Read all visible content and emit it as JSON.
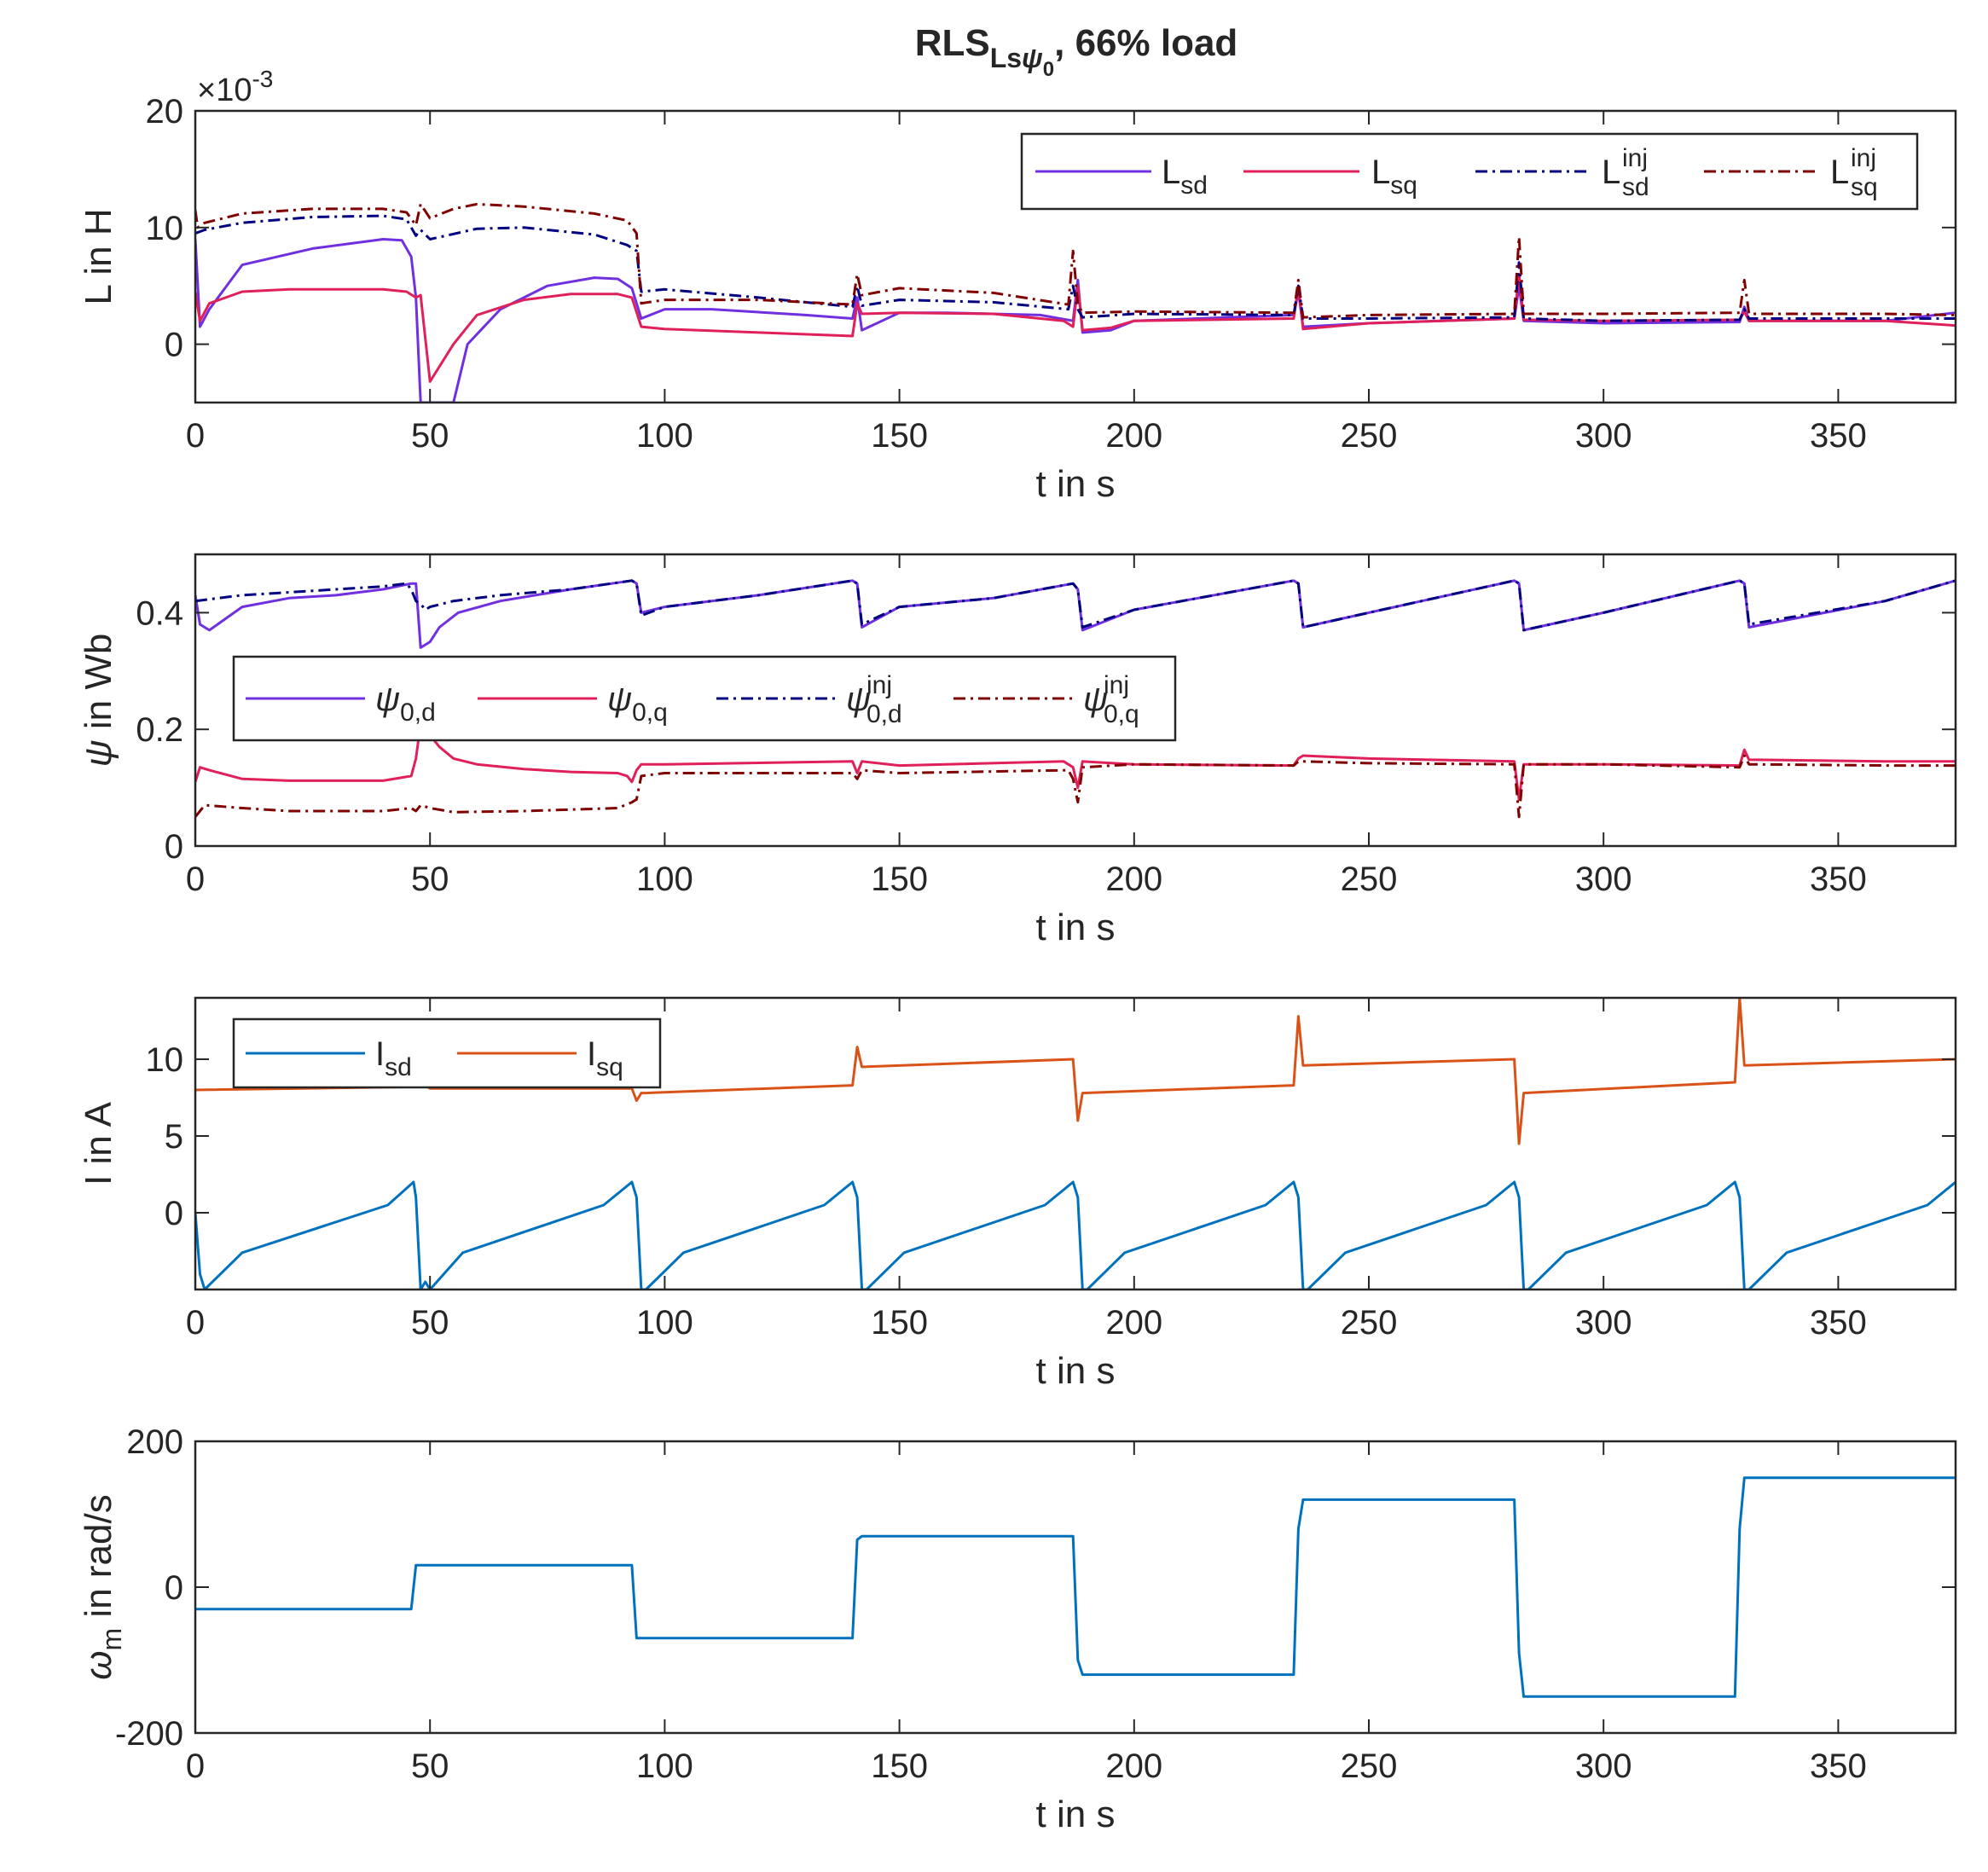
{
  "figure": {
    "title_main": "RLS",
    "title_sub": "Ls",
    "title_sub_greek": "ψ",
    "title_sub_sub": "0",
    "title_rest": ", 66% load"
  },
  "colors": {
    "axis": "#262626",
    "Lsd": "#7030E0",
    "Lsq": "#E0205A",
    "Lsd_inj": "#000080",
    "Lsq_inj": "#800000",
    "Isd": "#0072BD",
    "Isq": "#D95319",
    "wm": "#0072BD"
  },
  "chart_data": [
    {
      "type": "line",
      "xlabel": "t in s",
      "ylabel": "L in H",
      "exponent_label": {
        "base": "×10",
        "exp": "-3"
      },
      "xlim": [
        0,
        375
      ],
      "ylim": [
        -5,
        20
      ],
      "xticks": [
        0,
        50,
        100,
        150,
        200,
        250,
        300,
        350
      ],
      "yticks": [
        0,
        10,
        20
      ],
      "legend_position": "top-right",
      "series": [
        {
          "name": "L",
          "sub": "sd",
          "sup": "",
          "color": "#7030E0",
          "dash": "solid",
          "x": [
            0,
            1,
            3,
            10,
            25,
            40,
            44,
            46,
            47,
            48,
            49,
            50,
            52,
            55,
            58,
            65,
            75,
            85,
            90,
            93,
            95,
            100,
            110,
            130,
            140,
            141,
            142,
            150,
            160,
            180,
            187,
            188,
            189,
            195,
            200,
            234,
            235,
            236,
            250,
            281,
            282,
            283,
            300,
            329,
            330,
            331,
            360,
            375
          ],
          "y": [
            9,
            1.5,
            3,
            6.8,
            8.2,
            9,
            8.9,
            7.5,
            4,
            -5,
            -5,
            -5,
            -5,
            -5,
            0,
            3,
            5,
            5.7,
            5.6,
            4.8,
            2.2,
            3,
            3,
            2.5,
            2.2,
            4,
            1.2,
            2.7,
            2.7,
            2.5,
            2,
            5.5,
            1,
            1.2,
            2,
            2.5,
            4.5,
            1.5,
            1.8,
            2.2,
            5,
            2,
            1.8,
            1.9,
            3.2,
            2,
            2,
            2.7
          ]
        },
        {
          "name": "L",
          "sub": "sq",
          "sup": "",
          "color": "#E0205A",
          "dash": "solid",
          "x": [
            0,
            1,
            3,
            10,
            20,
            40,
            45,
            47,
            48,
            50,
            55,
            60,
            70,
            80,
            90,
            93,
            95,
            100,
            120,
            140,
            141,
            142,
            150,
            170,
            185,
            187,
            188,
            189,
            195,
            200,
            234,
            235,
            236,
            250,
            281,
            282,
            283,
            300,
            329,
            330,
            331,
            360,
            375
          ],
          "y": [
            4.5,
            2,
            3.5,
            4.5,
            4.7,
            4.7,
            4.5,
            4,
            4.2,
            -3.2,
            0,
            2.5,
            3.8,
            4.3,
            4.3,
            4,
            1.5,
            1.3,
            1,
            0.7,
            3.5,
            2.6,
            2.7,
            2.6,
            2,
            1.5,
            5,
            1.2,
            1.4,
            2,
            2.2,
            5,
            1.3,
            1.8,
            2.2,
            6,
            2.1,
            2,
            2.1,
            2.8,
            2,
            2,
            1.6
          ]
        },
        {
          "name": "L",
          "sub": "sd",
          "sup": "inj",
          "color": "#000080",
          "dash": "dashdot",
          "x": [
            0,
            2,
            10,
            25,
            40,
            45,
            47,
            48,
            50,
            60,
            70,
            85,
            92,
            94,
            95,
            100,
            120,
            140,
            141,
            142,
            150,
            170,
            186,
            187,
            188,
            189,
            200,
            234,
            235,
            236,
            250,
            281,
            282,
            283,
            300,
            329,
            330,
            331,
            360,
            375
          ],
          "y": [
            9.5,
            9.8,
            10.4,
            10.9,
            11,
            10.7,
            9.3,
            9.8,
            9,
            9.9,
            10,
            9.4,
            8.5,
            8,
            4.5,
            4.7,
            4,
            3.2,
            5,
            3.3,
            3.8,
            3.6,
            3,
            5,
            3,
            2.3,
            2.6,
            2.5,
            5,
            2.2,
            2.2,
            2.3,
            7,
            2.2,
            2,
            2.1,
            3,
            2.2,
            2.2,
            2.2
          ]
        },
        {
          "name": "L",
          "sub": "sq",
          "sup": "inj",
          "color": "#800000",
          "dash": "dashdot",
          "x": [
            0,
            0.5,
            2,
            10,
            25,
            40,
            45,
            47,
            48,
            50,
            55,
            60,
            70,
            85,
            92,
            94,
            95,
            100,
            120,
            140,
            141,
            142,
            150,
            170,
            186,
            187,
            188,
            189,
            200,
            234,
            235,
            236,
            250,
            281,
            282,
            283,
            300,
            329,
            330,
            331,
            360,
            375
          ],
          "y": [
            11.5,
            10,
            10.4,
            11.2,
            11.6,
            11.6,
            11.3,
            10.2,
            12,
            10.8,
            11.6,
            12,
            11.8,
            11.2,
            10.6,
            9.5,
            3.5,
            3.8,
            3.8,
            3.4,
            6,
            4.2,
            4.8,
            4.4,
            3.4,
            8,
            3.4,
            2.7,
            2.8,
            2.7,
            5.5,
            2.3,
            2.5,
            2.6,
            9.2,
            2.6,
            2.6,
            2.7,
            5.5,
            2.6,
            2.6,
            2.5
          ]
        }
      ]
    },
    {
      "type": "line",
      "xlabel": "t in s",
      "ylabel": "ψ in Wb",
      "xlim": [
        0,
        375
      ],
      "ylim": [
        0,
        0.5
      ],
      "xticks": [
        0,
        50,
        100,
        150,
        200,
        250,
        300,
        350
      ],
      "yticks": [
        0,
        0.2,
        0.4
      ],
      "legend_position": "middle-left",
      "series": [
        {
          "name": "ψ",
          "sub": "0,d",
          "sup": "",
          "color": "#7030E0",
          "dash": "solid",
          "x": [
            0,
            1,
            3,
            10,
            20,
            30,
            40,
            46,
            47,
            48,
            50,
            52,
            56,
            65,
            80,
            93,
            94,
            95,
            100,
            120,
            140,
            141,
            142,
            150,
            170,
            187,
            188,
            189,
            200,
            234,
            235,
            236,
            250,
            281,
            282,
            283,
            300,
            329,
            330,
            331,
            360,
            375
          ],
          "y": [
            0.43,
            0.38,
            0.37,
            0.41,
            0.425,
            0.43,
            0.44,
            0.45,
            0.45,
            0.34,
            0.35,
            0.375,
            0.4,
            0.42,
            0.44,
            0.455,
            0.45,
            0.4,
            0.41,
            0.43,
            0.455,
            0.45,
            0.375,
            0.41,
            0.425,
            0.45,
            0.44,
            0.37,
            0.405,
            0.455,
            0.45,
            0.375,
            0.4,
            0.455,
            0.45,
            0.37,
            0.4,
            0.455,
            0.45,
            0.375,
            0.42,
            0.455
          ]
        },
        {
          "name": "ψ",
          "sub": "0,q",
          "sup": "",
          "color": "#E0205A",
          "dash": "solid",
          "x": [
            0,
            1,
            3,
            10,
            20,
            40,
            46,
            47,
            48,
            50,
            52,
            55,
            60,
            70,
            80,
            90,
            92,
            93,
            94,
            95,
            100,
            140,
            141,
            142,
            150,
            185,
            187,
            188,
            189,
            200,
            234,
            235,
            236,
            250,
            281,
            282,
            283,
            300,
            329,
            330,
            331,
            360,
            375
          ],
          "y": [
            0.11,
            0.135,
            0.13,
            0.115,
            0.112,
            0.112,
            0.12,
            0.15,
            0.21,
            0.19,
            0.17,
            0.15,
            0.14,
            0.132,
            0.127,
            0.125,
            0.12,
            0.11,
            0.13,
            0.14,
            0.14,
            0.145,
            0.125,
            0.145,
            0.138,
            0.145,
            0.135,
            0.1,
            0.145,
            0.14,
            0.138,
            0.15,
            0.155,
            0.15,
            0.145,
            0.08,
            0.14,
            0.14,
            0.138,
            0.165,
            0.148,
            0.145,
            0.145
          ]
        },
        {
          "name": "ψ",
          "sub": "0,d",
          "sup": "inj",
          "color": "#000080",
          "dash": "dashdot",
          "x": [
            0,
            10,
            20,
            30,
            40,
            45,
            46,
            47,
            48,
            49,
            50,
            55,
            65,
            80,
            93,
            94,
            95,
            100,
            120,
            140,
            141,
            142,
            150,
            170,
            187,
            188,
            189,
            200,
            234,
            235,
            236,
            250,
            281,
            282,
            283,
            300,
            329,
            330,
            331,
            360,
            375
          ],
          "y": [
            0.42,
            0.43,
            0.435,
            0.44,
            0.445,
            0.45,
            0.44,
            0.42,
            0.415,
            0.405,
            0.41,
            0.42,
            0.43,
            0.44,
            0.455,
            0.45,
            0.395,
            0.41,
            0.43,
            0.455,
            0.45,
            0.38,
            0.41,
            0.425,
            0.45,
            0.44,
            0.375,
            0.405,
            0.455,
            0.45,
            0.375,
            0.4,
            0.455,
            0.45,
            0.37,
            0.4,
            0.455,
            0.45,
            0.38,
            0.42,
            0.455
          ]
        },
        {
          "name": "ψ",
          "sub": "0,q",
          "sup": "inj",
          "color": "#800000",
          "dash": "dashdot",
          "x": [
            0,
            2,
            10,
            20,
            40,
            46,
            47,
            48,
            50,
            55,
            70,
            90,
            93,
            94,
            95,
            100,
            140,
            141,
            142,
            150,
            186,
            187,
            188,
            189,
            200,
            234,
            235,
            236,
            250,
            281,
            282,
            283,
            300,
            329,
            330,
            331,
            360,
            375
          ],
          "y": [
            0.05,
            0.07,
            0.065,
            0.06,
            0.06,
            0.065,
            0.06,
            0.07,
            0.065,
            0.058,
            0.06,
            0.065,
            0.075,
            0.08,
            0.12,
            0.125,
            0.125,
            0.115,
            0.13,
            0.125,
            0.13,
            0.115,
            0.075,
            0.135,
            0.14,
            0.138,
            0.145,
            0.145,
            0.142,
            0.14,
            0.05,
            0.14,
            0.14,
            0.135,
            0.155,
            0.14,
            0.138,
            0.138
          ]
        }
      ]
    },
    {
      "type": "line",
      "xlabel": "t in s",
      "ylabel": "I in A",
      "xlim": [
        0,
        375
      ],
      "ylim": [
        -5,
        14
      ],
      "xticks": [
        0,
        50,
        100,
        150,
        200,
        250,
        300,
        350
      ],
      "yticks": [
        0,
        5,
        10
      ],
      "legend_position": "top-left",
      "series": [
        {
          "name": "I",
          "sub": "sd",
          "sup": "",
          "color": "#0072BD",
          "dash": "solid",
          "x": [
            0,
            1,
            2,
            10,
            41,
            46.5,
            47,
            48,
            49,
            50,
            57,
            87,
            93,
            94,
            95,
            96,
            104,
            134,
            140,
            141,
            142,
            143,
            151,
            181,
            187,
            188,
            189,
            190,
            198,
            228,
            234,
            235,
            236,
            237,
            245,
            275,
            281,
            282,
            283,
            284,
            292,
            322,
            328,
            329,
            330,
            331,
            339,
            369,
            375
          ],
          "y": [
            0,
            -4,
            -5,
            -2.6,
            0.5,
            2,
            1,
            -5,
            -4.5,
            -5,
            -2.6,
            0.5,
            2,
            1,
            -5,
            -5,
            -2.6,
            0.5,
            2,
            1,
            -5,
            -5,
            -2.6,
            0.5,
            2,
            1,
            -5,
            -5,
            -2.6,
            0.5,
            2,
            1,
            -5,
            -5,
            -2.6,
            0.5,
            2,
            1,
            -5,
            -5,
            -2.6,
            0.5,
            2,
            1,
            -5,
            -5,
            -2.6,
            0.5,
            2
          ]
        },
        {
          "name": "I",
          "sub": "sq",
          "sup": "",
          "color": "#D95319",
          "dash": "solid",
          "x": [
            0,
            46,
            47,
            48,
            50,
            93,
            94,
            95,
            96,
            140,
            141,
            142,
            187,
            188,
            189,
            234,
            235,
            236,
            281,
            282,
            283,
            328,
            329,
            330,
            375
          ],
          "y": [
            8,
            8.2,
            8.3,
            8.5,
            8.1,
            8.1,
            7.3,
            7.8,
            7.8,
            8.3,
            10.8,
            9.5,
            10,
            6,
            7.8,
            8.3,
            12.8,
            9.6,
            10,
            4.5,
            7.8,
            8.5,
            14,
            9.6,
            10
          ]
        }
      ]
    },
    {
      "type": "line",
      "xlabel": "t in s",
      "ylabel": "ω",
      "ylabel_sub": "m",
      "ylabel_rest": " in rad/s",
      "xlim": [
        0,
        375
      ],
      "ylim": [
        -200,
        200
      ],
      "xticks": [
        0,
        50,
        100,
        150,
        200,
        250,
        300,
        350
      ],
      "yticks": [
        -200,
        0,
        200
      ],
      "series": [
        {
          "name": "",
          "color": "#0072BD",
          "dash": "solid",
          "x": [
            0,
            46,
            47,
            48,
            93,
            94,
            140,
            141,
            142,
            187,
            188,
            189,
            234,
            235,
            236,
            281,
            282,
            283,
            328,
            329,
            330,
            375
          ],
          "y": [
            -30,
            -30,
            30,
            30,
            30,
            -70,
            -70,
            65,
            70,
            70,
            -100,
            -120,
            -120,
            80,
            120,
            120,
            -90,
            -150,
            -150,
            80,
            150,
            150
          ]
        }
      ]
    }
  ]
}
